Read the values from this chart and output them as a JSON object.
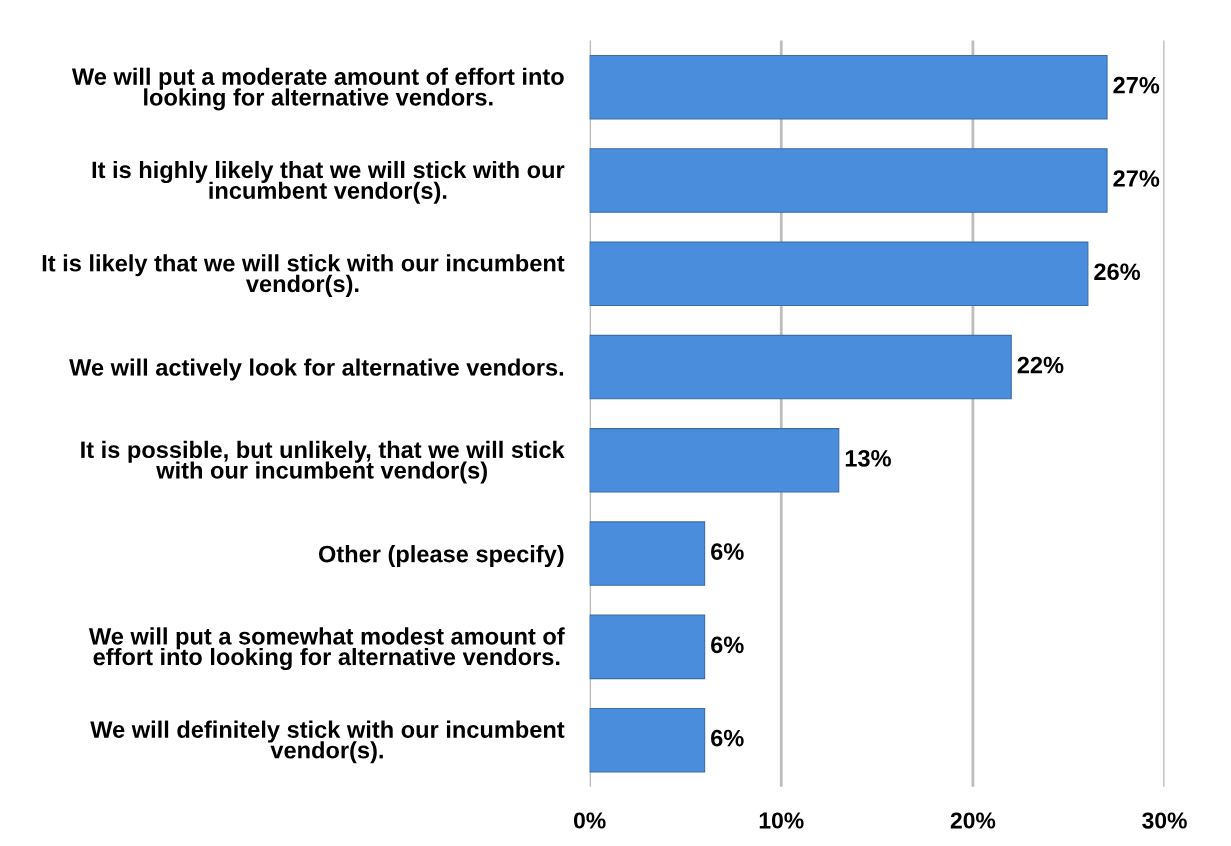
{
  "chart_data": {
    "type": "bar",
    "orientation": "horizontal",
    "categories": [
      "We will put a moderate amount of effort into\nlooking for alternative vendors.",
      "It is highly likely that we will stick with our\nincumbent vendor(s).",
      "It is likely that we will stick with our incumbent\nvendor(s).",
      "We will actively look for alternative vendors.",
      "It is possible, but unlikely, that we will stick\nwith our incumbent vendor(s)",
      "Other (please specify)",
      "We will put a somewhat modest amount of\neffort into looking for alternative vendors.",
      "We will definitely stick with our incumbent\nvendor(s)."
    ],
    "values": [
      27,
      27,
      26,
      22,
      13,
      6,
      6,
      6
    ],
    "value_labels": [
      "27%",
      "27%",
      "26%",
      "22%",
      "13%",
      "6%",
      "6%",
      "6%"
    ],
    "color": "#4a8ddc",
    "xlim": [
      0,
      30
    ],
    "xticks": [
      {
        "value": 0,
        "label": "0%"
      },
      {
        "value": 10,
        "label": "10%"
      },
      {
        "value": 20,
        "label": "20%"
      },
      {
        "value": 30,
        "label": "30%"
      }
    ],
    "grid": "x"
  }
}
